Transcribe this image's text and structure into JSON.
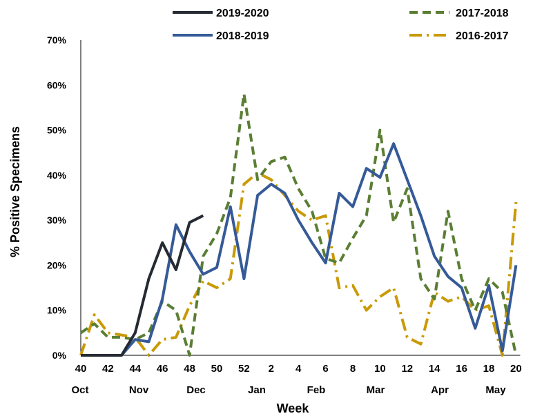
{
  "chart_data": {
    "type": "line",
    "xlabel": "Week",
    "ylabel": "% Positive Specimens",
    "ylim": [
      0,
      70
    ],
    "ytick_labels": [
      "0%",
      "10%",
      "20%",
      "30%",
      "40%",
      "50%",
      "60%",
      "70%"
    ],
    "x_tick_labels": [
      "40",
      "42",
      "44",
      "46",
      "48",
      "50",
      "52",
      "2",
      "4",
      "6",
      "8",
      "10",
      "12",
      "14",
      "16",
      "18",
      "20"
    ],
    "month_labels": [
      "Oct",
      "Nov",
      "Dec",
      "Jan",
      "Feb",
      "Mar",
      "Apr",
      "May"
    ],
    "legend_position": "top",
    "series": [
      {
        "name": "2019-2020",
        "color": "#262a33",
        "style": "solid",
        "values": [
          0,
          0,
          0,
          0,
          5,
          17,
          25,
          19,
          29.5,
          31
        ]
      },
      {
        "name": "2018-2019",
        "color": "#355a97",
        "style": "solid",
        "values": [
          0,
          0,
          0,
          0,
          3.5,
          3,
          12.5,
          29,
          23,
          18,
          19.5,
          33,
          17,
          35.5,
          38,
          36,
          30,
          25,
          20.5,
          36,
          33,
          41.5,
          39.5,
          47,
          39,
          31,
          22,
          17.5,
          15,
          6,
          15.5,
          1,
          20
        ]
      },
      {
        "name": "2017-2018",
        "color": "#5a7e33",
        "style": "dashed",
        "values": [
          5,
          7,
          4,
          4,
          3.5,
          5,
          12,
          10,
          0,
          22,
          27,
          35,
          58,
          39,
          43,
          44,
          37,
          32,
          21.5,
          20.5,
          26,
          31,
          50,
          29.5,
          37,
          17,
          12.5,
          32,
          17,
          10,
          17,
          14,
          0
        ]
      },
      {
        "name": "2016-2017",
        "color": "#c99a06",
        "style": "dashdot",
        "values": [
          0,
          9,
          5,
          4.5,
          4,
          0,
          3.5,
          4,
          11,
          16.5,
          15,
          17,
          38,
          40.5,
          39,
          35.5,
          32,
          30,
          31,
          15,
          15.5,
          10,
          13,
          15,
          4,
          2.5,
          14,
          12,
          13,
          10,
          11,
          0,
          34
        ]
      }
    ]
  }
}
